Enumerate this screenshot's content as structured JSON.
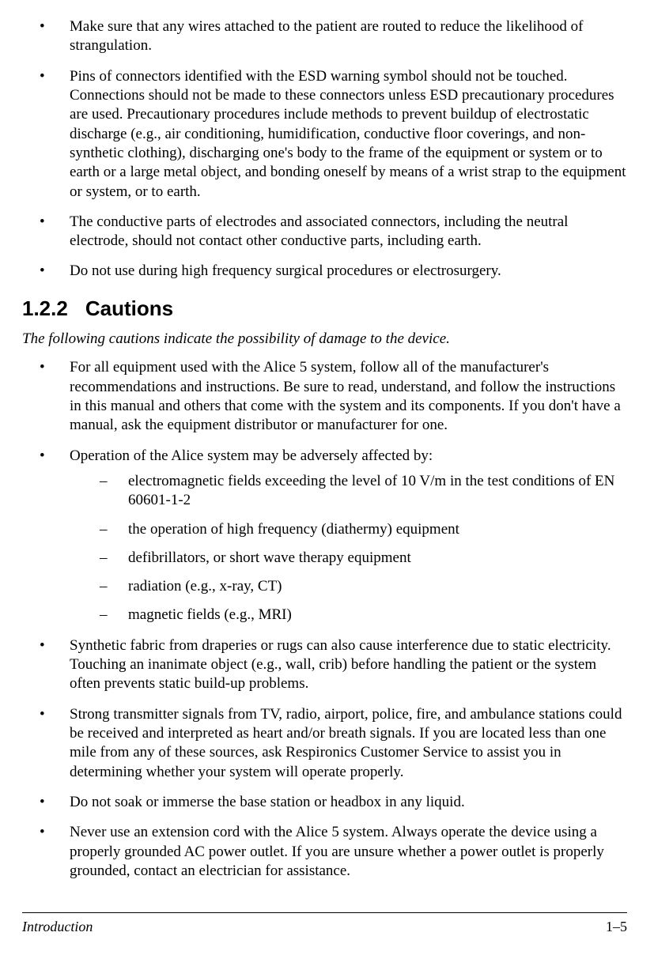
{
  "warnings": {
    "items": [
      "Make sure that any wires attached to the patient are routed to reduce the likelihood of strangulation.",
      "Pins of connectors identified with the ESD warning symbol should not be touched. Connections should not be made to these connectors unless ESD precautionary procedures are used. Precautionary procedures include methods to prevent buildup of electrostatic discharge (e.g., air conditioning, humidification, conductive floor coverings, and non-synthetic clothing), discharging one's body to the frame of the equipment or system or to earth or a large metal object, and bonding oneself by means of a wrist strap to the equipment or system, or to earth.",
      "The conductive parts of electrodes and associated connectors, including the neutral electrode, should not contact other conductive parts, including earth.",
      "Do not use during high frequency surgical procedures or electrosurgery."
    ]
  },
  "section": {
    "number": "1.2.2",
    "title": "Cautions",
    "intro": "The following cautions indicate the possibility of damage to the device.",
    "items": [
      {
        "text": "For all equipment used with the Alice 5 system, follow all of the manufacturer's recommendations and instructions. Be sure to read, understand, and follow the instructions in this manual and others that come with the system and its components. If you don't have a manual, ask the equipment distributor or manufacturer for one."
      },
      {
        "text": "Operation of the Alice system may be adversely affected by:",
        "sub": [
          "electromagnetic fields exceeding the level of 10 V/m in the test conditions of EN 60601-1-2",
          "the operation of high frequency (diathermy) equipment",
          "defibrillators, or short wave therapy equipment",
          "radiation (e.g., x-ray, CT)",
          "magnetic fields (e.g., MRI)"
        ]
      },
      {
        "text": "Synthetic fabric from draperies or rugs can also cause interference due to static electricity. Touching an inanimate object (e.g., wall, crib) before handling the patient or the system often prevents static build-up problems."
      },
      {
        "text": "Strong transmitter signals from TV, radio, airport, police, fire, and ambulance stations could be received and interpreted as heart and/or breath signals. If you are located less than one mile from any of these sources, ask Respironics Customer Service to assist you in determining whether your system will operate properly."
      },
      {
        "text": "Do not soak or immerse the base station or headbox in any liquid."
      },
      {
        "text": "Never use an extension cord with the Alice 5 system. Always operate the device using a properly grounded AC power outlet. If you are unsure whether a power outlet is properly grounded, contact an electrician for assistance."
      }
    ]
  },
  "footer": {
    "left": "Introduction",
    "right": "1–5"
  }
}
